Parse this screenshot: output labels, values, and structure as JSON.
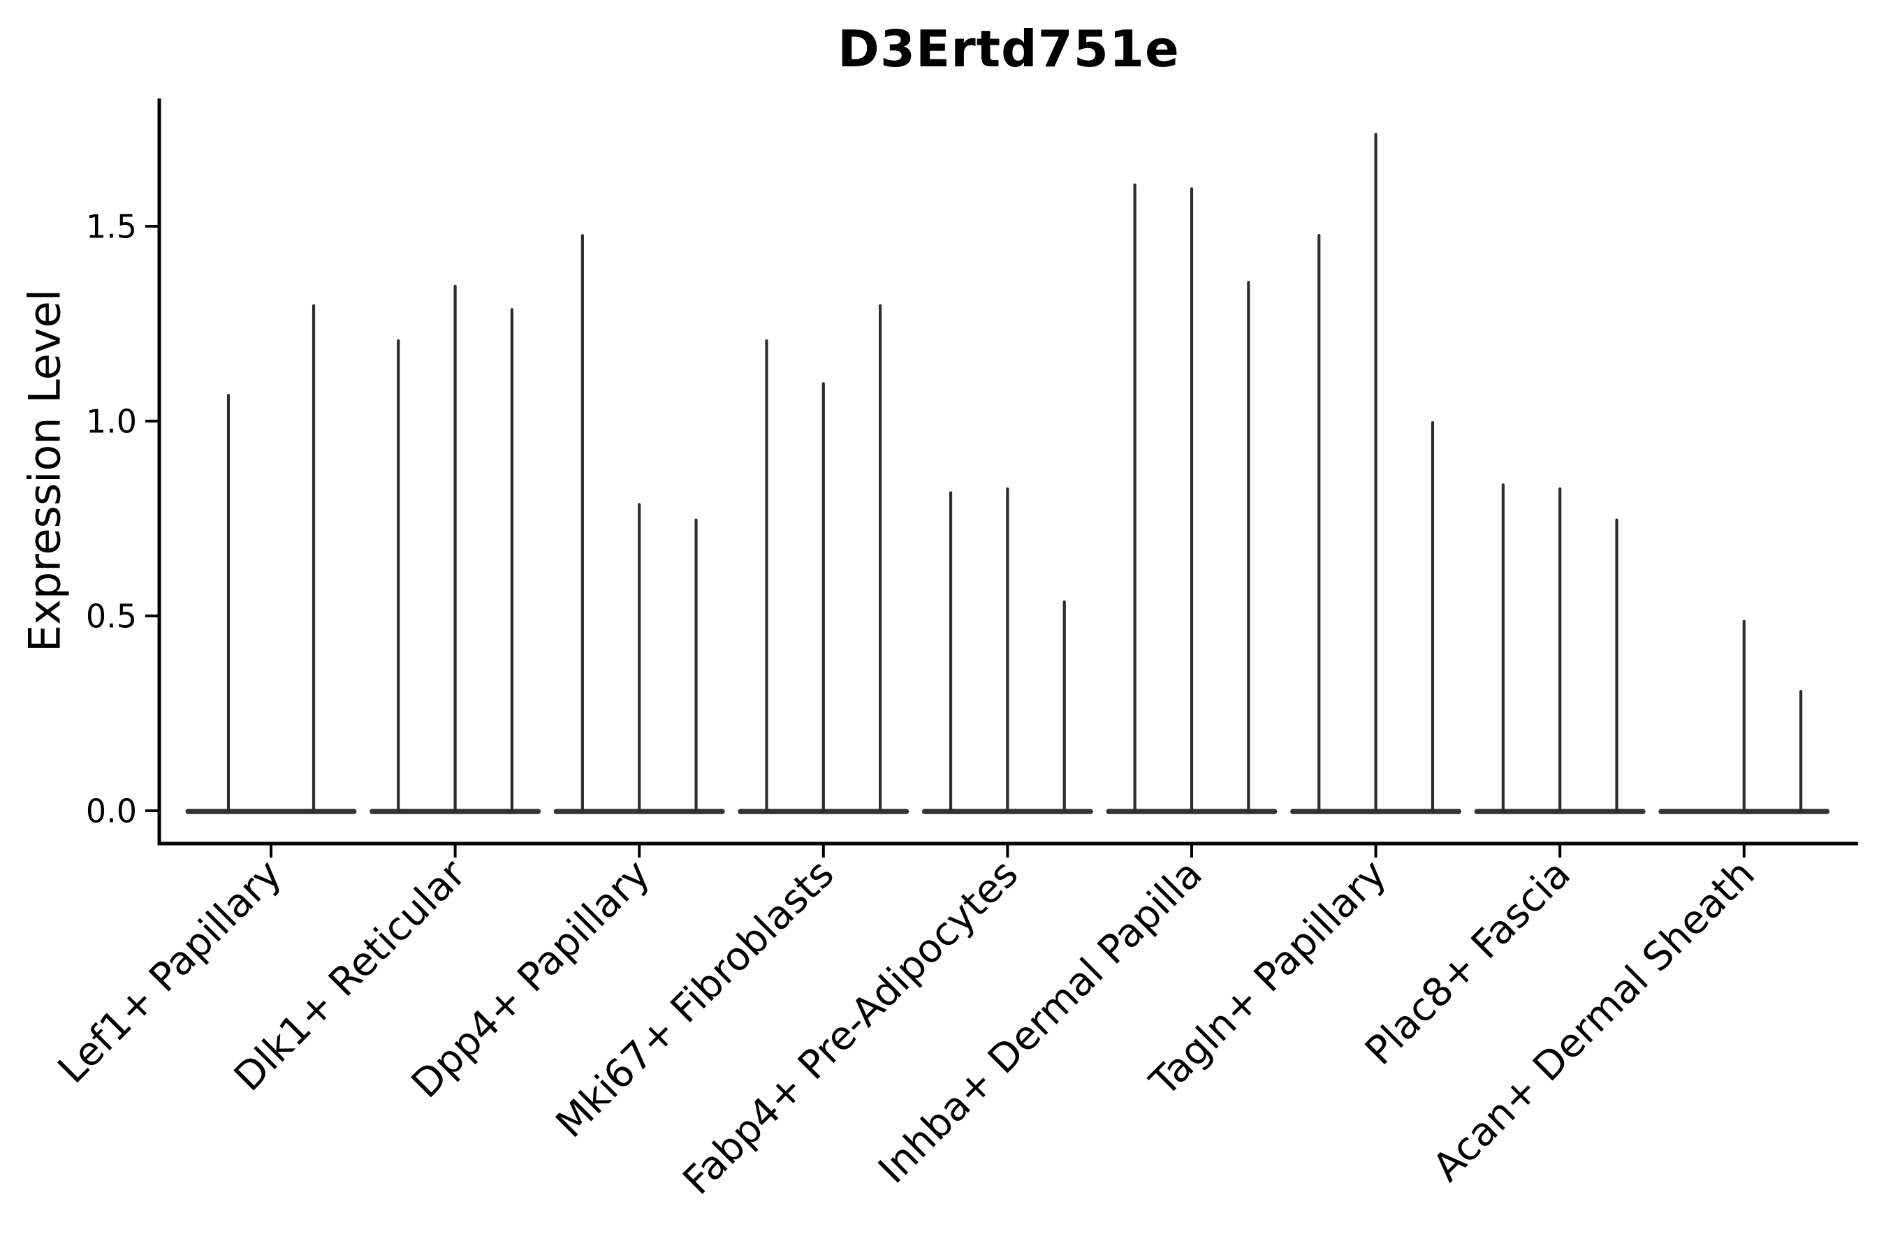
{
  "chart_data": {
    "type": "violin",
    "title": "D3Ertd751e",
    "xlabel": "",
    "ylabel": "Expression Level",
    "ylim": [
      -0.084,
      1.83
    ],
    "yticks": [
      0.0,
      0.5,
      1.0,
      1.5
    ],
    "ytick_labels": [
      "0.0",
      "0.5",
      "1.0",
      "1.5"
    ],
    "grid": false,
    "legend_position": "none",
    "xtick_rotation_degrees": 45,
    "categories": [
      "Lef1+ Papillary",
      "Dlk1+ Reticular",
      "Dpp4+ Papillary",
      "Mki67+ Fibroblasts",
      "Fabp4+ Pre-Adipocytes",
      "Inhba+ Dermal Papilla",
      "Tagln+ Papillary",
      "Plac8+ Fascia",
      "Acan+ Dermal Sheath"
    ],
    "series": [
      {
        "category": "Lef1+ Papillary",
        "violin_max_expression": [
          1.07,
          1.3
        ]
      },
      {
        "category": "Dlk1+ Reticular",
        "violin_max_expression": [
          1.21,
          1.35,
          1.29
        ]
      },
      {
        "category": "Dpp4+ Papillary",
        "violin_max_expression": [
          1.48,
          0.79,
          0.75
        ]
      },
      {
        "category": "Mki67+ Fibroblasts",
        "violin_max_expression": [
          1.21,
          1.1,
          1.3
        ]
      },
      {
        "category": "Fabp4+ Pre-Adipocytes",
        "violin_max_expression": [
          0.82,
          0.83,
          0.54
        ]
      },
      {
        "category": "Inhba+ Dermal Papilla",
        "violin_max_expression": [
          1.61,
          1.6,
          1.36
        ]
      },
      {
        "category": "Tagln+ Papillary",
        "violin_max_expression": [
          1.48,
          1.74,
          1.0
        ]
      },
      {
        "category": "Plac8+ Fascia",
        "violin_max_expression": [
          0.84,
          0.83,
          0.75
        ]
      },
      {
        "category": "Acan+ Dermal Sheath",
        "violin_max_expression": [
          0.0,
          0.49,
          0.31
        ]
      }
    ],
    "colors": {
      "violin": "#2d2d2d",
      "violin_base": "#333333",
      "axis": "#000000",
      "text": "#000000",
      "background": "#ffffff"
    }
  }
}
